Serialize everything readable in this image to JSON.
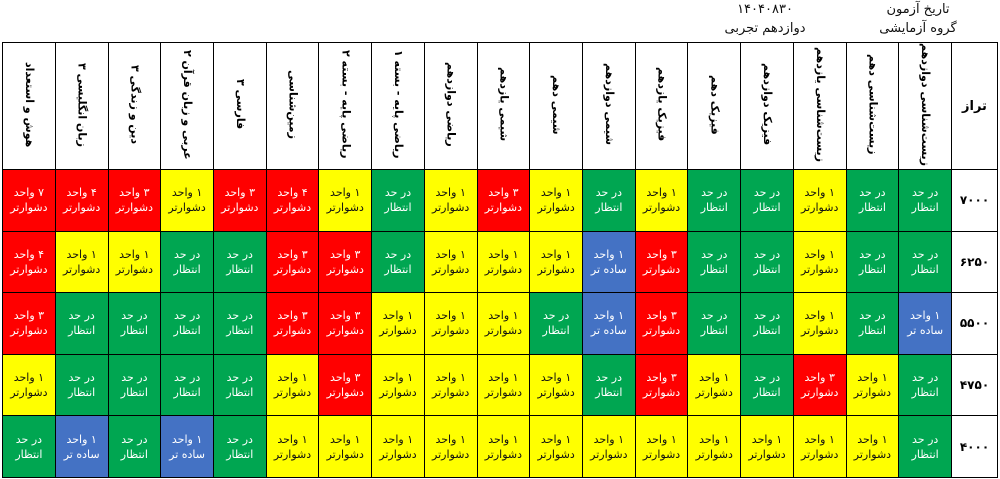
{
  "header": {
    "exam_date_label": "تاریخ آزمون",
    "exam_date_value": "۱۴۰۴۰۸۳۰",
    "group_label": "گروه آزمایشی",
    "group_value": "دوازدهم تجربی"
  },
  "table": {
    "corner_label": "تراز",
    "subjects": [
      "زیست‌شناسی دوازدهم",
      "زیست‌شناسی دهم",
      "زیست‌شناسی یازدهم",
      "فیزیک دوازدهم",
      "فیزیک دهم",
      "فیزیک یازدهم",
      "شیمی دوازدهم",
      "شیمی دهم",
      "شیمی یازدهم",
      "ریاضی دوازدهم",
      "ریاضی پایه - بسته ۱",
      "ریاضی پایه - بسته ۲",
      "زمین‌شناسی",
      "فارسی ۳",
      "عربی و زبان قرآن ۲",
      "دین و زندگی ۳",
      "زبان انگلیسی ۳",
      "هوش و استعداد"
    ],
    "rows": [
      {
        "taraz": "۷۰۰۰",
        "cells": [
          {
            "line1": "در حد",
            "line2": "انتظار",
            "color": "green"
          },
          {
            "line1": "در حد",
            "line2": "انتظار",
            "color": "green"
          },
          {
            "line1": "۱ واحد",
            "line2": "دشوارتر",
            "color": "yellow"
          },
          {
            "line1": "در حد",
            "line2": "انتظار",
            "color": "green"
          },
          {
            "line1": "در حد",
            "line2": "انتظار",
            "color": "green"
          },
          {
            "line1": "۱ واحد",
            "line2": "دشوارتر",
            "color": "yellow"
          },
          {
            "line1": "در حد",
            "line2": "انتظار",
            "color": "green"
          },
          {
            "line1": "۱ واحد",
            "line2": "دشوارتر",
            "color": "yellow"
          },
          {
            "line1": "۳ واحد",
            "line2": "دشوارتر",
            "color": "red"
          },
          {
            "line1": "۱ واحد",
            "line2": "دشوارتر",
            "color": "yellow"
          },
          {
            "line1": "در حد",
            "line2": "انتظار",
            "color": "green"
          },
          {
            "line1": "۱ واحد",
            "line2": "دشوارتر",
            "color": "yellow"
          },
          {
            "line1": "۴ واحد",
            "line2": "دشوارتر",
            "color": "red"
          },
          {
            "line1": "۳ واحد",
            "line2": "دشوارتر",
            "color": "red"
          },
          {
            "line1": "۱ واحد",
            "line2": "دشوارتر",
            "color": "yellow"
          },
          {
            "line1": "۳ واحد",
            "line2": "دشوارتر",
            "color": "red"
          },
          {
            "line1": "۴ واحد",
            "line2": "دشوارتر",
            "color": "red"
          },
          {
            "line1": "۷ واحد",
            "line2": "دشوارتر",
            "color": "red"
          }
        ]
      },
      {
        "taraz": "۶۲۵۰",
        "cells": [
          {
            "line1": "در حد",
            "line2": "انتظار",
            "color": "green"
          },
          {
            "line1": "در حد",
            "line2": "انتظار",
            "color": "green"
          },
          {
            "line1": "۱ واحد",
            "line2": "دشوارتر",
            "color": "yellow"
          },
          {
            "line1": "در حد",
            "line2": "انتظار",
            "color": "green"
          },
          {
            "line1": "در حد",
            "line2": "انتظار",
            "color": "green"
          },
          {
            "line1": "۳ واحد",
            "line2": "دشوارتر",
            "color": "red"
          },
          {
            "line1": "۱ واحد",
            "line2": "ساده تر",
            "color": "blue"
          },
          {
            "line1": "۱ واحد",
            "line2": "دشوارتر",
            "color": "yellow"
          },
          {
            "line1": "۱ واحد",
            "line2": "دشوارتر",
            "color": "yellow"
          },
          {
            "line1": "۱ واحد",
            "line2": "دشوارتر",
            "color": "yellow"
          },
          {
            "line1": "در حد",
            "line2": "انتظار",
            "color": "green"
          },
          {
            "line1": "۳ واحد",
            "line2": "دشوارتر",
            "color": "red"
          },
          {
            "line1": "۳ واحد",
            "line2": "دشوارتر",
            "color": "red"
          },
          {
            "line1": "در حد",
            "line2": "انتظار",
            "color": "green"
          },
          {
            "line1": "در حد",
            "line2": "انتظار",
            "color": "green"
          },
          {
            "line1": "۱ واحد",
            "line2": "دشوارتر",
            "color": "yellow"
          },
          {
            "line1": "۱ واحد",
            "line2": "دشوارتر",
            "color": "yellow"
          },
          {
            "line1": "۴ واحد",
            "line2": "دشوارتر",
            "color": "red"
          }
        ]
      },
      {
        "taraz": "۵۵۰۰",
        "cells": [
          {
            "line1": "۱ واحد",
            "line2": "ساده تر",
            "color": "blue"
          },
          {
            "line1": "در حد",
            "line2": "انتظار",
            "color": "green"
          },
          {
            "line1": "۱ واحد",
            "line2": "دشوارتر",
            "color": "yellow"
          },
          {
            "line1": "در حد",
            "line2": "انتظار",
            "color": "green"
          },
          {
            "line1": "در حد",
            "line2": "انتظار",
            "color": "green"
          },
          {
            "line1": "۳ واحد",
            "line2": "دشوارتر",
            "color": "red"
          },
          {
            "line1": "۱ واحد",
            "line2": "ساده تر",
            "color": "blue"
          },
          {
            "line1": "در حد",
            "line2": "انتظار",
            "color": "green"
          },
          {
            "line1": "۱ واحد",
            "line2": "دشوارتر",
            "color": "yellow"
          },
          {
            "line1": "۱ واحد",
            "line2": "دشوارتر",
            "color": "yellow"
          },
          {
            "line1": "۱ واحد",
            "line2": "دشوارتر",
            "color": "yellow"
          },
          {
            "line1": "۳ واحد",
            "line2": "دشوارتر",
            "color": "red"
          },
          {
            "line1": "۳ واحد",
            "line2": "دشوارتر",
            "color": "red"
          },
          {
            "line1": "در حد",
            "line2": "انتظار",
            "color": "green"
          },
          {
            "line1": "در حد",
            "line2": "انتظار",
            "color": "green"
          },
          {
            "line1": "در حد",
            "line2": "انتظار",
            "color": "green"
          },
          {
            "line1": "در حد",
            "line2": "انتظار",
            "color": "green"
          },
          {
            "line1": "۳ واحد",
            "line2": "دشوارتر",
            "color": "red"
          }
        ]
      },
      {
        "taraz": "۴۷۵۰",
        "cells": [
          {
            "line1": "در حد",
            "line2": "انتظار",
            "color": "green"
          },
          {
            "line1": "۱ واحد",
            "line2": "دشوارتر",
            "color": "yellow"
          },
          {
            "line1": "۳ واحد",
            "line2": "دشوارتر",
            "color": "red"
          },
          {
            "line1": "در حد",
            "line2": "انتظار",
            "color": "green"
          },
          {
            "line1": "۱ واحد",
            "line2": "دشوارتر",
            "color": "yellow"
          },
          {
            "line1": "۳ واحد",
            "line2": "دشوارتر",
            "color": "red"
          },
          {
            "line1": "در حد",
            "line2": "انتظار",
            "color": "green"
          },
          {
            "line1": "۱ واحد",
            "line2": "دشوارتر",
            "color": "yellow"
          },
          {
            "line1": "۱ واحد",
            "line2": "دشوارتر",
            "color": "yellow"
          },
          {
            "line1": "۱ واحد",
            "line2": "دشوارتر",
            "color": "yellow"
          },
          {
            "line1": "۱ واحد",
            "line2": "دشوارتر",
            "color": "yellow"
          },
          {
            "line1": "۳ واحد",
            "line2": "دشوارتر",
            "color": "red"
          },
          {
            "line1": "۱ واحد",
            "line2": "دشوارتر",
            "color": "yellow"
          },
          {
            "line1": "در حد",
            "line2": "انتظار",
            "color": "green"
          },
          {
            "line1": "در حد",
            "line2": "انتظار",
            "color": "green"
          },
          {
            "line1": "در حد",
            "line2": "انتظار",
            "color": "green"
          },
          {
            "line1": "در حد",
            "line2": "انتظار",
            "color": "green"
          },
          {
            "line1": "۱ واحد",
            "line2": "دشوارتر",
            "color": "yellow"
          }
        ]
      },
      {
        "taraz": "۴۰۰۰",
        "cells": [
          {
            "line1": "در حد",
            "line2": "انتظار",
            "color": "green"
          },
          {
            "line1": "۱ واحد",
            "line2": "دشوارتر",
            "color": "yellow"
          },
          {
            "line1": "۱ واحد",
            "line2": "دشوارتر",
            "color": "yellow"
          },
          {
            "line1": "۱ واحد",
            "line2": "دشوارتر",
            "color": "yellow"
          },
          {
            "line1": "۱ واحد",
            "line2": "دشوارتر",
            "color": "yellow"
          },
          {
            "line1": "۱ واحد",
            "line2": "دشوارتر",
            "color": "yellow"
          },
          {
            "line1": "۱ واحد",
            "line2": "دشوارتر",
            "color": "yellow"
          },
          {
            "line1": "۱ واحد",
            "line2": "دشوارتر",
            "color": "yellow"
          },
          {
            "line1": "۱ واحد",
            "line2": "دشوارتر",
            "color": "yellow"
          },
          {
            "line1": "۱ واحد",
            "line2": "دشوارتر",
            "color": "yellow"
          },
          {
            "line1": "۱ واحد",
            "line2": "دشوارتر",
            "color": "yellow"
          },
          {
            "line1": "۱ واحد",
            "line2": "دشوارتر",
            "color": "yellow"
          },
          {
            "line1": "۱ واحد",
            "line2": "دشوارتر",
            "color": "yellow"
          },
          {
            "line1": "در حد",
            "line2": "انتظار",
            "color": "green"
          },
          {
            "line1": "۱ واحد",
            "line2": "ساده تر",
            "color": "blue"
          },
          {
            "line1": "در حد",
            "line2": "انتظار",
            "color": "green"
          },
          {
            "line1": "۱ واحد",
            "line2": "ساده تر",
            "color": "blue"
          },
          {
            "line1": "در حد",
            "line2": "انتظار",
            "color": "green"
          }
        ]
      }
    ]
  },
  "colors": {
    "red": "#ff0000",
    "yellow": "#ffff00",
    "green": "#00a651",
    "blue": "#4472c4"
  }
}
